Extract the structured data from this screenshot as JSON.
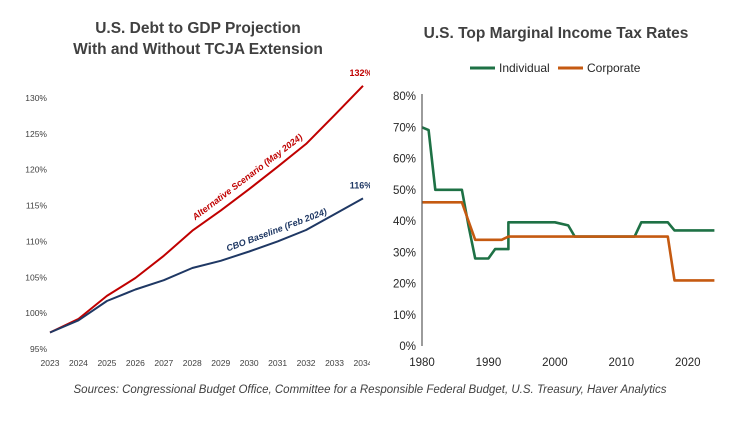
{
  "chart_data": [
    {
      "type": "line",
      "title": "U.S. Debt to GDP Projection",
      "subtitle": "With and Without TCJA Extension",
      "xlabel": "",
      "ylabel": "",
      "x": [
        2023,
        2024,
        2025,
        2026,
        2027,
        2028,
        2029,
        2030,
        2031,
        2032,
        2033,
        2034
      ],
      "xlim": [
        2023,
        2034
      ],
      "ylim": [
        95,
        130
      ],
      "y_ticks": [
        "95%",
        "100%",
        "105%",
        "110%",
        "115%",
        "120%",
        "125%",
        "130%"
      ],
      "x_ticks": [
        "2023",
        "2024",
        "2025",
        "2026",
        "2027",
        "2028",
        "2029",
        "2030",
        "2031",
        "2032",
        "2033",
        "2034"
      ],
      "grid": false,
      "legend": "none",
      "series": [
        {
          "name": "Alternative Scenario (May 2024)",
          "color": "#c00000",
          "values": [
            97.3,
            99.2,
            102.4,
            104.9,
            108.0,
            111.5,
            114.3,
            117.3,
            120.4,
            123.6,
            127.6,
            131.7
          ],
          "end_label": "132%"
        },
        {
          "name": "CBO Baseline (Feb 2024)",
          "color": "#1f3864",
          "values": [
            97.3,
            99.0,
            101.7,
            103.3,
            104.6,
            106.3,
            107.3,
            108.6,
            110.0,
            111.6,
            113.8,
            116.0
          ],
          "end_label": "116%"
        }
      ]
    },
    {
      "type": "line",
      "title": "U.S. Top Marginal Income Tax Rates",
      "xlabel": "",
      "ylabel": "",
      "xlim": [
        1980,
        2025
      ],
      "ylim": [
        0,
        80
      ],
      "y_ticks": [
        "0%",
        "10%",
        "20%",
        "30%",
        "40%",
        "50%",
        "60%",
        "70%",
        "80%"
      ],
      "x_ticks": [
        "1980",
        "1990",
        "2000",
        "2010",
        "2020"
      ],
      "grid": false,
      "legend": "top",
      "series": [
        {
          "name": "Individual",
          "color": "#1e7145",
          "points": [
            [
              1980,
              70
            ],
            [
              1981,
              69.1
            ],
            [
              1982,
              50
            ],
            [
              1986,
              50
            ],
            [
              1987,
              38.5
            ],
            [
              1988,
              28
            ],
            [
              1990,
              28
            ],
            [
              1991,
              31
            ],
            [
              1993,
              31
            ],
            [
              1993,
              39.6
            ],
            [
              2000,
              39.6
            ],
            [
              2002,
              38.6
            ],
            [
              2003,
              35
            ],
            [
              2012,
              35
            ],
            [
              2013,
              39.6
            ],
            [
              2017,
              39.6
            ],
            [
              2018,
              37
            ],
            [
              2024,
              37
            ]
          ]
        },
        {
          "name": "Corporate",
          "color": "#c55a11",
          "points": [
            [
              1980,
              46
            ],
            [
              1986,
              46
            ],
            [
              1987,
              40
            ],
            [
              1988,
              34
            ],
            [
              1992,
              34
            ],
            [
              1993,
              35
            ],
            [
              2017,
              35
            ],
            [
              2018,
              21
            ],
            [
              2024,
              21
            ]
          ]
        }
      ]
    }
  ],
  "footer": {
    "source": "Sources: Congressional Budget Office, Committee for a Responsible Federal Budget, U.S. Treasury, Haver Analytics"
  }
}
